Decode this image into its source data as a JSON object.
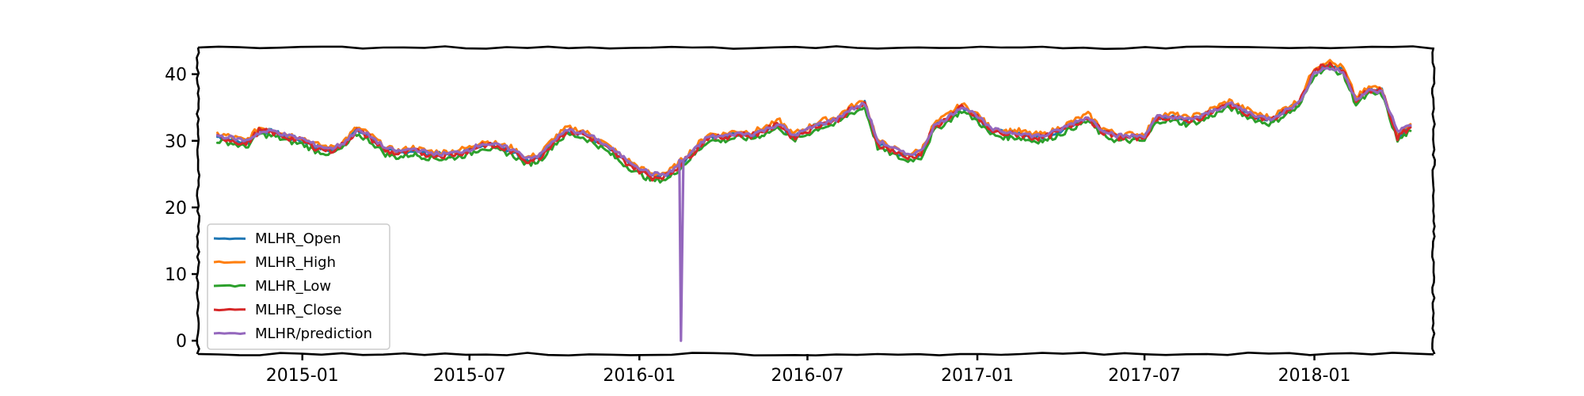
{
  "chart_data": {
    "type": "line",
    "style": "xkcd",
    "title": "",
    "xlabel": "",
    "ylabel": "",
    "x_range": [
      "2014-09-10",
      "2018-05-10"
    ],
    "ylim": [
      -2,
      44
    ],
    "y_ticks": [
      0,
      10,
      20,
      30,
      40
    ],
    "x_ticks": [
      "2015-01",
      "2015-07",
      "2016-01",
      "2016-07",
      "2017-01",
      "2017-07",
      "2018-01"
    ],
    "x_tick_dates": [
      "2015-01-01",
      "2015-07-01",
      "2016-01-01",
      "2016-07-01",
      "2017-01-01",
      "2017-07-01",
      "2018-01-01"
    ],
    "grid": false,
    "legend_position": "lower-left",
    "series": [
      {
        "name": "MLHR_Open",
        "color": "#1f77b4"
      },
      {
        "name": "MLHR_High",
        "color": "#ff7f0e"
      },
      {
        "name": "MLHR_Low",
        "color": "#2ca02c"
      },
      {
        "name": "MLHR_Close",
        "color": "#d62728"
      },
      {
        "name": "MLHR/prediction",
        "color": "#9467bd"
      }
    ],
    "dates": [
      "2014-10-01",
      "2014-10-15",
      "2014-11-01",
      "2014-11-15",
      "2014-12-01",
      "2014-12-15",
      "2015-01-01",
      "2015-01-15",
      "2015-02-01",
      "2015-02-15",
      "2015-03-01",
      "2015-03-15",
      "2015-04-01",
      "2015-04-15",
      "2015-05-01",
      "2015-05-15",
      "2015-06-01",
      "2015-06-15",
      "2015-07-01",
      "2015-07-15",
      "2015-08-01",
      "2015-08-15",
      "2015-09-01",
      "2015-09-15",
      "2015-10-01",
      "2015-10-15",
      "2015-11-01",
      "2015-11-15",
      "2015-12-01",
      "2015-12-15",
      "2016-01-01",
      "2016-01-15",
      "2016-02-01",
      "2016-02-15",
      "2016-03-01",
      "2016-03-15",
      "2016-04-01",
      "2016-04-15",
      "2016-05-01",
      "2016-05-15",
      "2016-06-01",
      "2016-06-15",
      "2016-07-01",
      "2016-07-15",
      "2016-08-01",
      "2016-08-15",
      "2016-09-01",
      "2016-09-15",
      "2016-10-01",
      "2016-10-15",
      "2016-11-01",
      "2016-11-15",
      "2016-12-01",
      "2016-12-15",
      "2017-01-01",
      "2017-01-15",
      "2017-02-01",
      "2017-02-15",
      "2017-03-01",
      "2017-03-15",
      "2017-04-01",
      "2017-04-15",
      "2017-05-01",
      "2017-05-15",
      "2017-06-01",
      "2017-06-15",
      "2017-07-01",
      "2017-07-15",
      "2017-08-01",
      "2017-08-15",
      "2017-09-01",
      "2017-09-15",
      "2017-10-01",
      "2017-10-15",
      "2017-11-01",
      "2017-11-15",
      "2017-12-01",
      "2017-12-15",
      "2018-01-01",
      "2018-01-15",
      "2018-02-01",
      "2018-02-15",
      "2018-03-01",
      "2018-03-15",
      "2018-04-01",
      "2018-04-15"
    ],
    "close": [
      30.5,
      30.2,
      29.5,
      31.5,
      31.2,
      30.5,
      30.0,
      29.0,
      28.5,
      29.5,
      31.5,
      30.5,
      28.5,
      28.0,
      28.5,
      28.0,
      27.8,
      28.0,
      28.5,
      29.5,
      29.0,
      28.5,
      27.0,
      27.5,
      30.0,
      31.5,
      31.0,
      30.0,
      28.5,
      27.0,
      25.5,
      24.5,
      24.8,
      26.5,
      28.5,
      30.5,
      30.5,
      31.0,
      30.8,
      31.5,
      32.5,
      30.5,
      31.5,
      32.5,
      33.0,
      34.5,
      35.5,
      29.5,
      28.5,
      27.5,
      28.0,
      32.0,
      33.5,
      35.0,
      33.5,
      31.5,
      31.0,
      31.0,
      30.5,
      30.5,
      31.5,
      32.5,
      33.5,
      31.5,
      30.5,
      30.5,
      30.5,
      33.5,
      33.5,
      33.0,
      33.5,
      34.5,
      35.5,
      34.5,
      33.5,
      33.0,
      34.5,
      35.5,
      40.5,
      41.5,
      40.5,
      36.0,
      37.5,
      37.5,
      30.5,
      32.0
    ],
    "prediction": [
      30.8,
      30.5,
      30.0,
      31.2,
      31.5,
      30.8,
      30.3,
      29.4,
      28.8,
      29.7,
      31.6,
      30.8,
      28.9,
      28.4,
      28.8,
      28.3,
      28.0,
      28.2,
      28.7,
      29.6,
      29.3,
      28.8,
      27.5,
      27.8,
      30.2,
      31.6,
      31.2,
      30.3,
      28.9,
      27.5,
      26.0,
      25.0,
      25.0,
      26.8,
      28.7,
      30.6,
      30.7,
      31.1,
      31.0,
      31.6,
      32.6,
      30.8,
      31.7,
      32.6,
      33.2,
      34.6,
      35.6,
      30.0,
      29.0,
      28.0,
      28.4,
      32.2,
      33.6,
      35.2,
      33.8,
      31.8,
      31.3,
      31.2,
      30.8,
      30.8,
      31.7,
      32.7,
      33.6,
      31.8,
      30.8,
      30.7,
      30.8,
      33.6,
      33.6,
      33.2,
      33.7,
      34.6,
      35.6,
      34.7,
      33.7,
      33.3,
      34.6,
      35.6,
      40.2,
      41.0,
      40.3,
      36.3,
      37.5,
      37.3,
      31.5,
      32.3
    ],
    "prediction_anomaly": {
      "date": "2016-02-15",
      "value": 0
    }
  }
}
